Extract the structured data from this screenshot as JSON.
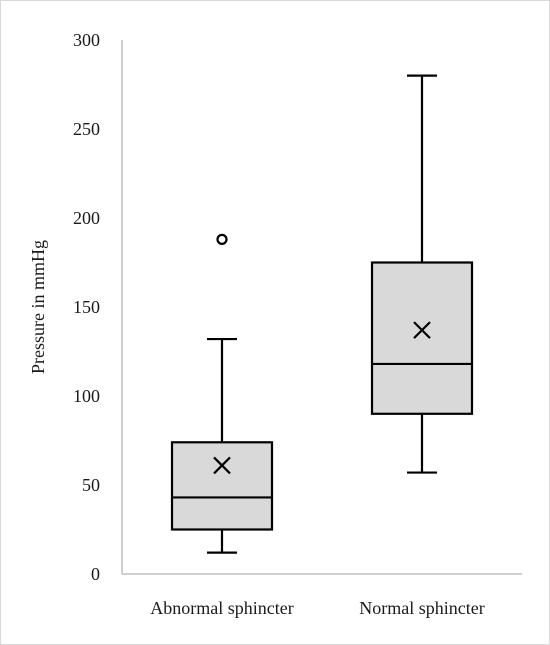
{
  "chart_data": {
    "type": "box",
    "title": "",
    "xlabel": "",
    "ylabel": "Pressure in mmHg",
    "ylim": [
      0,
      300
    ],
    "yticks": [
      0,
      50,
      100,
      150,
      200,
      250,
      300
    ],
    "grid": false,
    "legend": "none",
    "categories": [
      "Abnormal sphincter",
      "Normal sphincter"
    ],
    "boxes": [
      {
        "category": "Abnormal sphincter",
        "min": 12,
        "q1": 25,
        "median": 43,
        "q3": 74,
        "max": 132,
        "mean": 61,
        "outliers": [
          188
        ]
      },
      {
        "category": "Normal sphincter",
        "min": 57,
        "q1": 90,
        "median": 118,
        "q3": 175,
        "max": 280,
        "mean": 137,
        "outliers": []
      }
    ],
    "colors": {
      "box_fill": "#d9d9d9",
      "stroke": "#000000",
      "axis": "#bfbfbf"
    }
  }
}
